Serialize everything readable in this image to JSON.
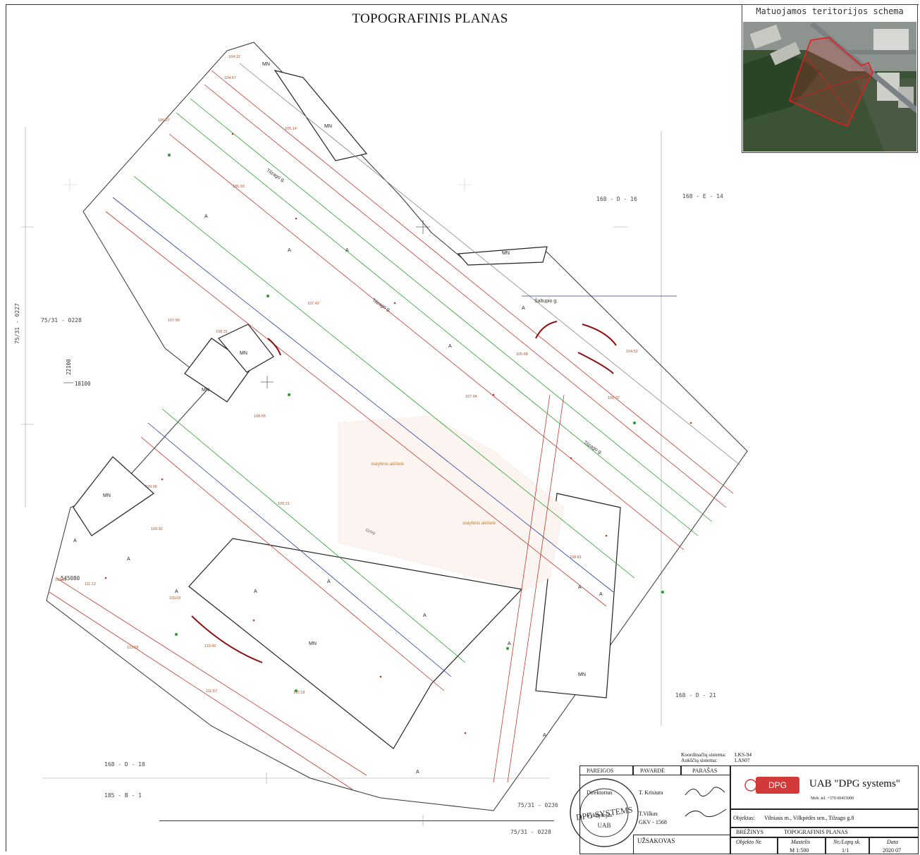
{
  "title": "TOPOGRAFINIS PLANAS",
  "inset": {
    "title": "Matuojamos teritorijos schema",
    "colors": {
      "forest": "#2f4a2c",
      "roof": "#c9c9c4",
      "road": "#8b8f90",
      "boundary": "#e01f1f"
    }
  },
  "sheet_refs": {
    "top_right_a": "168 - D - 16",
    "top_right_b": "168 - E - 14",
    "left_mid": "75/31 - 0228",
    "left_vert": "75/31 - 0227",
    "bottom_right": "168 - D - 21",
    "bottom_left_a": "168 - D - 18",
    "bottom_left_b": "185 - B - 1",
    "bottom_mid_a": "75/31 - 0236",
    "bottom_mid_b": "75/31 - 0228"
  },
  "grid_labels": {
    "y_label": "18100",
    "x_label": "22100",
    "x_bottom": "545080"
  },
  "map": {
    "zone_marks": [
      "MN",
      "MN",
      "MN",
      "MN",
      "MN",
      "MN",
      "MN",
      "MN"
    ],
    "area_marks": [
      "A",
      "A",
      "A",
      "A",
      "A",
      "A",
      "A",
      "A",
      "A",
      "A",
      "A",
      "A",
      "A",
      "A",
      "A",
      "A"
    ],
    "streets": [
      "Tilzago g.",
      "Tilzago g.",
      "Tilzago g.",
      "Šaltupio g."
    ],
    "feature_labels": [
      "Grīvy",
      "statybinis aikštelė",
      "statybinis aikštelė"
    ],
    "elevations": [
      "104.12",
      "104.67",
      "105.14",
      "106.27",
      "106.93",
      "107.42",
      "107.99",
      "108.31",
      "108.55",
      "109.21",
      "109.06",
      "109.92",
      "110.03",
      "110.42",
      "111.12",
      "111.57",
      "112.18",
      "113.12",
      "113.58",
      "108.81",
      "107.04",
      "106.37",
      "105.68",
      "104.52"
    ]
  },
  "coordinate_system": {
    "l1": "Koordinačių sistema:",
    "v1": "LKS-94",
    "l2": "Aukščių sistema:",
    "v2": "LAS07"
  },
  "title_block": {
    "headers": [
      "PAREIGOS",
      "PAVARDĖ",
      "PARAŠAS"
    ],
    "rows": [
      {
        "role": "Direktorius",
        "name": "T. Krisiura"
      },
      {
        "role": "Vykdytojas",
        "name": "T.Vilkas"
      },
      {
        "role": "",
        "name": "GKV - 1568"
      }
    ],
    "client_label": "UŽSAKOVAS",
    "company": "UAB \"DPG systems\"",
    "logo_text": "DPG systems",
    "company_code": "Mob. tel. +370 60415000",
    "object_label": "Objektas:",
    "object_value": "Vilniaus m., Vilkpėdės sen., Tilzago g.8",
    "drawing_label": "BRĖŽINYS",
    "drawing_value": "TOPOGRAFINIS PLANAS",
    "cols": [
      "Objekto Nr.",
      "Mastelis",
      "Nr./Lapų sk.",
      "Data"
    ],
    "vals": [
      "",
      "M 1:500",
      "1/1",
      "2020 07"
    ],
    "stamp_text": "DPG SYSTEMS",
    "stamp_sub": "UAB"
  }
}
